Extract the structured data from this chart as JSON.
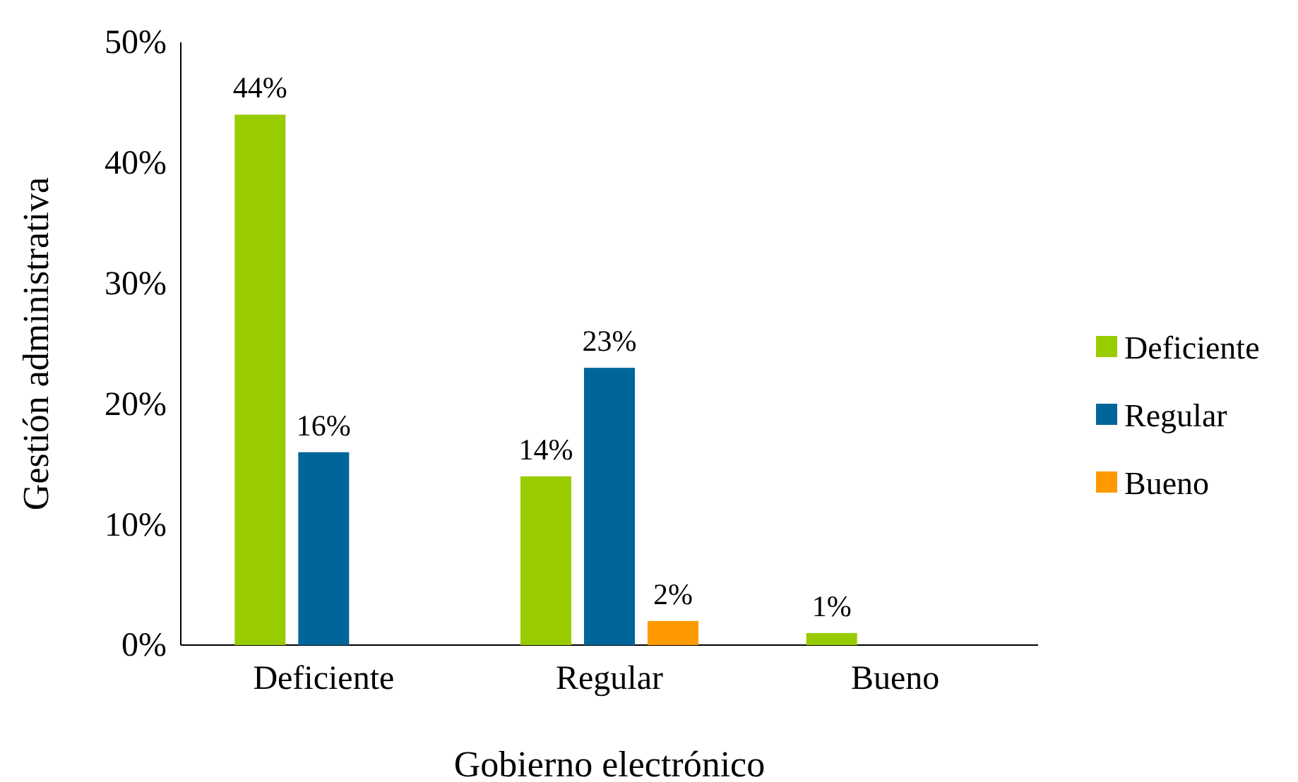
{
  "chart_data": {
    "type": "bar",
    "xlabel": "Gobierno electrónico",
    "ylabel": "Gestión administrativa",
    "categories": [
      "Deficiente",
      "Regular",
      "Bueno"
    ],
    "series": [
      {
        "name": "Deficiente",
        "color": "#99cc00",
        "values": [
          44,
          14,
          1
        ],
        "value_labels": [
          "44%",
          "14%",
          "1%"
        ]
      },
      {
        "name": "Regular",
        "color": "#006699",
        "values": [
          16,
          23,
          null
        ],
        "value_labels": [
          "16%",
          "23%",
          null
        ]
      },
      {
        "name": "Bueno",
        "color": "#ff9900",
        "values": [
          null,
          2,
          null
        ],
        "value_labels": [
          null,
          "2%",
          null
        ]
      }
    ],
    "ylim": [
      0,
      50
    ],
    "yticks": [
      {
        "value": 0,
        "label": "0%"
      },
      {
        "value": 10,
        "label": "10%"
      },
      {
        "value": 20,
        "label": "20%"
      },
      {
        "value": 30,
        "label": "30%"
      },
      {
        "value": 40,
        "label": "40%"
      },
      {
        "value": 50,
        "label": "50%"
      }
    ],
    "grid": false,
    "legend": "right"
  }
}
